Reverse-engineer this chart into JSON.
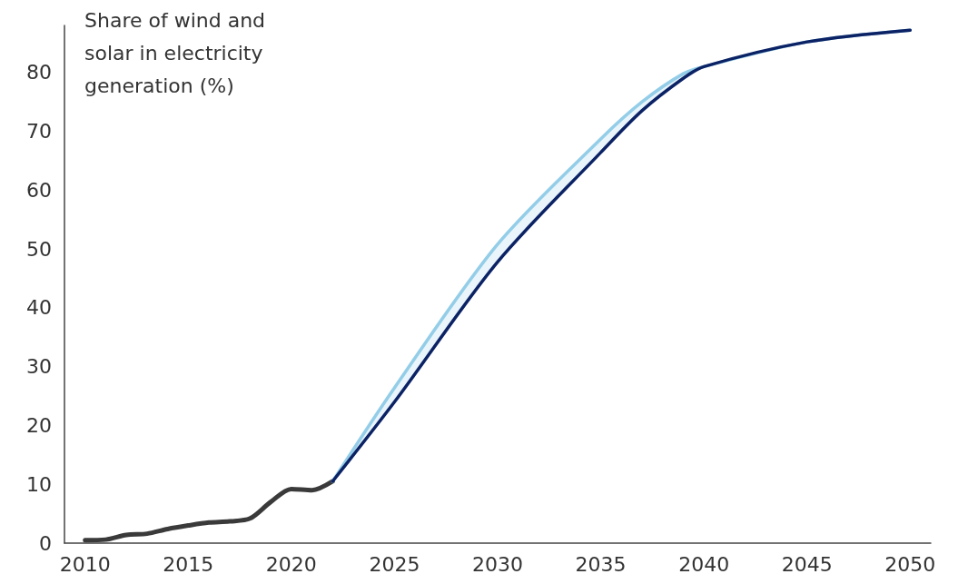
{
  "chart_data": {
    "type": "line",
    "ylabel": "Share of wind and solar in electricity generation (%)",
    "xlim": [
      2009,
      2051
    ],
    "xticks": [
      2010,
      2015,
      2020,
      2025,
      2030,
      2035,
      2040,
      2045,
      2050
    ],
    "ylim": [
      0,
      88
    ],
    "yticks": [
      0,
      10,
      20,
      30,
      40,
      50,
      60,
      70,
      80
    ],
    "grid": false,
    "marker": "none",
    "line_style": "solid",
    "series": [
      {
        "color": "#3a3a3a",
        "x": [
          2010,
          2011,
          2012,
          2013,
          2014,
          2015,
          2016,
          2017,
          2018,
          2019,
          2020,
          2021,
          2022
        ],
        "values": [
          0.5,
          0.6,
          1.4,
          1.6,
          2.4,
          3.0,
          3.5,
          3.7,
          4.2,
          7.0,
          9.2,
          9.0,
          10.5
        ]
      },
      {
        "color": "#93cde8",
        "x": [
          2022,
          2025,
          2030,
          2035,
          2037,
          2039,
          2040,
          2045,
          2050
        ],
        "values": [
          10.5,
          26.4,
          50.8,
          68.7,
          75.0,
          79.8,
          81.0,
          85.2,
          87.2
        ],
        "lower": [
          10.5,
          24.0,
          47.8,
          66.4,
          73.5,
          79.0,
          81.0,
          85.2,
          87.2
        ],
        "upper": [
          10.5,
          26.4,
          50.8,
          68.7,
          75.0,
          79.8,
          81.0,
          85.2,
          87.2
        ]
      },
      {
        "color": "#0b2265",
        "x": [
          2022,
          2025,
          2030,
          2035,
          2037,
          2039,
          2040,
          2045,
          2050
        ],
        "values": [
          10.5,
          24.0,
          47.8,
          66.4,
          73.5,
          79.0,
          81.0,
          85.2,
          87.2
        ]
      }
    ]
  }
}
